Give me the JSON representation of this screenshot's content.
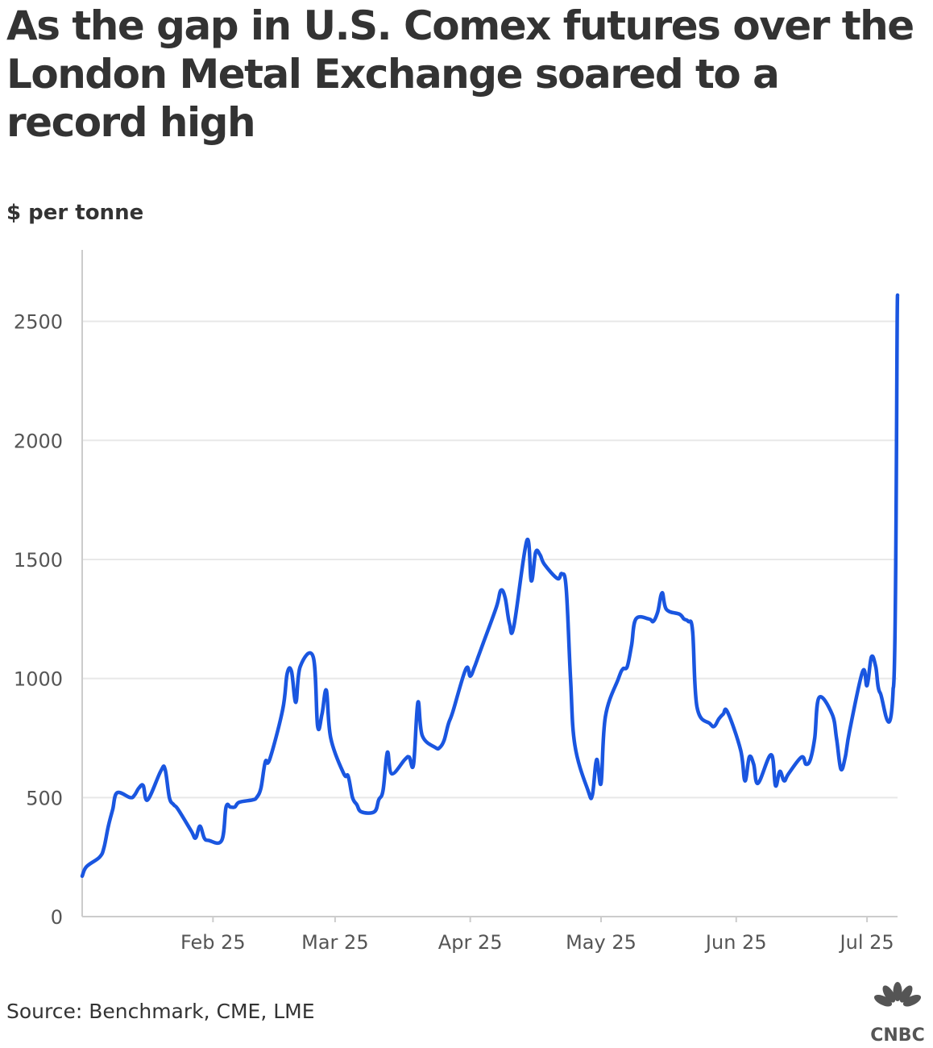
{
  "title": "As the gap in U.S. Comex futures over the London Metal Exchange soared to a record high",
  "subtitle": "$ per tonne",
  "source": "Source: Benchmark, CME, LME",
  "logo": {
    "text": "CNBC",
    "icon": "cnbc-peacock-icon"
  },
  "colors": {
    "line": "#1a56e0",
    "grid": "#e8e8e8",
    "axis": "#cccccc",
    "text": "#333333",
    "tick_text": "#555555"
  },
  "chart_data": {
    "type": "line",
    "title": "As the gap in U.S. Comex futures over the London Metal Exchange soared to a record high",
    "ylabel": "$ per tonne",
    "xlabel": "",
    "ylim": [
      0,
      2800
    ],
    "xlim": [
      "2025-01-02",
      "2025-07-08"
    ],
    "grid": "horizontal",
    "legend": "none",
    "yticks": [
      0,
      500,
      1000,
      1500,
      2000,
      2500
    ],
    "xticks": [
      {
        "label": "Feb 25",
        "date": "2025-02-01"
      },
      {
        "label": "Mar 25",
        "date": "2025-03-01"
      },
      {
        "label": "Apr 25",
        "date": "2025-04-01"
      },
      {
        "label": "May 25",
        "date": "2025-05-01"
      },
      {
        "label": "Jun 25",
        "date": "2025-06-01"
      },
      {
        "label": "Jul 25",
        "date": "2025-07-01"
      }
    ],
    "series": [
      {
        "values": [
          [
            "2025-01-02",
            170
          ],
          [
            "2025-01-03",
            210
          ],
          [
            "2025-01-06",
            250
          ],
          [
            "2025-01-07",
            290
          ],
          [
            "2025-01-08",
            380
          ],
          [
            "2025-01-09",
            450
          ],
          [
            "2025-01-10",
            520
          ],
          [
            "2025-01-13",
            500
          ],
          [
            "2025-01-14",
            510
          ],
          [
            "2025-01-15",
            540
          ],
          [
            "2025-01-16",
            550
          ],
          [
            "2025-01-17",
            490
          ],
          [
            "2025-01-20",
            610
          ],
          [
            "2025-01-21",
            620
          ],
          [
            "2025-01-22",
            500
          ],
          [
            "2025-01-23",
            470
          ],
          [
            "2025-01-24",
            450
          ],
          [
            "2025-01-27",
            360
          ],
          [
            "2025-01-28",
            330
          ],
          [
            "2025-01-29",
            380
          ],
          [
            "2025-01-30",
            330
          ],
          [
            "2025-01-31",
            320
          ],
          [
            "2025-02-03",
            320
          ],
          [
            "2025-02-04",
            460
          ],
          [
            "2025-02-05",
            460
          ],
          [
            "2025-02-06",
            460
          ],
          [
            "2025-02-07",
            480
          ],
          [
            "2025-02-10",
            490
          ],
          [
            "2025-02-11",
            500
          ],
          [
            "2025-02-12",
            540
          ],
          [
            "2025-02-13",
            650
          ],
          [
            "2025-02-14",
            660
          ],
          [
            "2025-02-17",
            870
          ],
          [
            "2025-02-18",
            1020
          ],
          [
            "2025-02-19",
            1030
          ],
          [
            "2025-02-20",
            900
          ],
          [
            "2025-02-21",
            1050
          ],
          [
            "2025-02-24",
            1090
          ],
          [
            "2025-02-25",
            800
          ],
          [
            "2025-02-26",
            850
          ],
          [
            "2025-02-27",
            950
          ],
          [
            "2025-02-28",
            750
          ],
          [
            "2025-03-03",
            600
          ],
          [
            "2025-03-04",
            590
          ],
          [
            "2025-03-05",
            500
          ],
          [
            "2025-03-06",
            470
          ],
          [
            "2025-03-07",
            440
          ],
          [
            "2025-03-10",
            440
          ],
          [
            "2025-03-11",
            490
          ],
          [
            "2025-03-12",
            530
          ],
          [
            "2025-03-13",
            690
          ],
          [
            "2025-03-14",
            600
          ],
          [
            "2025-03-17",
            660
          ],
          [
            "2025-03-18",
            670
          ],
          [
            "2025-03-19",
            640
          ],
          [
            "2025-03-20",
            900
          ],
          [
            "2025-03-21",
            760
          ],
          [
            "2025-03-24",
            710
          ],
          [
            "2025-03-25",
            710
          ],
          [
            "2025-03-26",
            740
          ],
          [
            "2025-03-27",
            810
          ],
          [
            "2025-03-28",
            860
          ],
          [
            "2025-03-31",
            1040
          ],
          [
            "2025-04-01",
            1010
          ],
          [
            "2025-04-02",
            1050
          ],
          [
            "2025-04-03",
            1100
          ],
          [
            "2025-04-04",
            1150
          ],
          [
            "2025-04-07",
            1300
          ],
          [
            "2025-04-08",
            1370
          ],
          [
            "2025-04-09",
            1340
          ],
          [
            "2025-04-10",
            1230
          ],
          [
            "2025-04-11",
            1220
          ],
          [
            "2025-04-14",
            1580
          ],
          [
            "2025-04-15",
            1410
          ],
          [
            "2025-04-16",
            1530
          ],
          [
            "2025-04-17",
            1520
          ],
          [
            "2025-04-18",
            1480
          ],
          [
            "2025-04-21",
            1420
          ],
          [
            "2025-04-22",
            1440
          ],
          [
            "2025-04-23",
            1380
          ],
          [
            "2025-04-24",
            1000
          ],
          [
            "2025-04-25",
            720
          ],
          [
            "2025-04-28",
            530
          ],
          [
            "2025-04-29",
            510
          ],
          [
            "2025-04-30",
            660
          ],
          [
            "2025-05-01",
            560
          ],
          [
            "2025-05-02",
            840
          ],
          [
            "2025-05-05",
            1000
          ],
          [
            "2025-05-06",
            1040
          ],
          [
            "2025-05-07",
            1050
          ],
          [
            "2025-05-08",
            1140
          ],
          [
            "2025-05-09",
            1250
          ],
          [
            "2025-05-12",
            1250
          ],
          [
            "2025-05-13",
            1240
          ],
          [
            "2025-05-14",
            1280
          ],
          [
            "2025-05-15",
            1360
          ],
          [
            "2025-05-16",
            1290
          ],
          [
            "2025-05-19",
            1270
          ],
          [
            "2025-05-20",
            1250
          ],
          [
            "2025-05-21",
            1240
          ],
          [
            "2025-05-22",
            1200
          ],
          [
            "2025-05-23",
            880
          ],
          [
            "2025-05-26",
            810
          ],
          [
            "2025-05-27",
            800
          ],
          [
            "2025-05-28",
            830
          ],
          [
            "2025-05-29",
            850
          ],
          [
            "2025-05-30",
            860
          ],
          [
            "2025-06-02",
            700
          ],
          [
            "2025-06-03",
            570
          ],
          [
            "2025-06-04",
            670
          ],
          [
            "2025-06-05",
            640
          ],
          [
            "2025-06-06",
            560
          ],
          [
            "2025-06-09",
            680
          ],
          [
            "2025-06-10",
            550
          ],
          [
            "2025-06-11",
            610
          ],
          [
            "2025-06-12",
            570
          ],
          [
            "2025-06-13",
            600
          ],
          [
            "2025-06-16",
            670
          ],
          [
            "2025-06-17",
            640
          ],
          [
            "2025-06-18",
            660
          ],
          [
            "2025-06-19",
            750
          ],
          [
            "2025-06-20",
            920
          ],
          [
            "2025-06-23",
            850
          ],
          [
            "2025-06-24",
            750
          ],
          [
            "2025-06-25",
            620
          ],
          [
            "2025-06-26",
            670
          ],
          [
            "2025-06-27",
            780
          ],
          [
            "2025-06-30",
            1030
          ],
          [
            "2025-07-01",
            970
          ],
          [
            "2025-07-02",
            1090
          ],
          [
            "2025-07-03",
            1050
          ],
          [
            "2025-07-04",
            940
          ],
          [
            "2025-07-07",
            960
          ],
          [
            "2025-07-08",
            2610
          ]
        ]
      }
    ]
  }
}
